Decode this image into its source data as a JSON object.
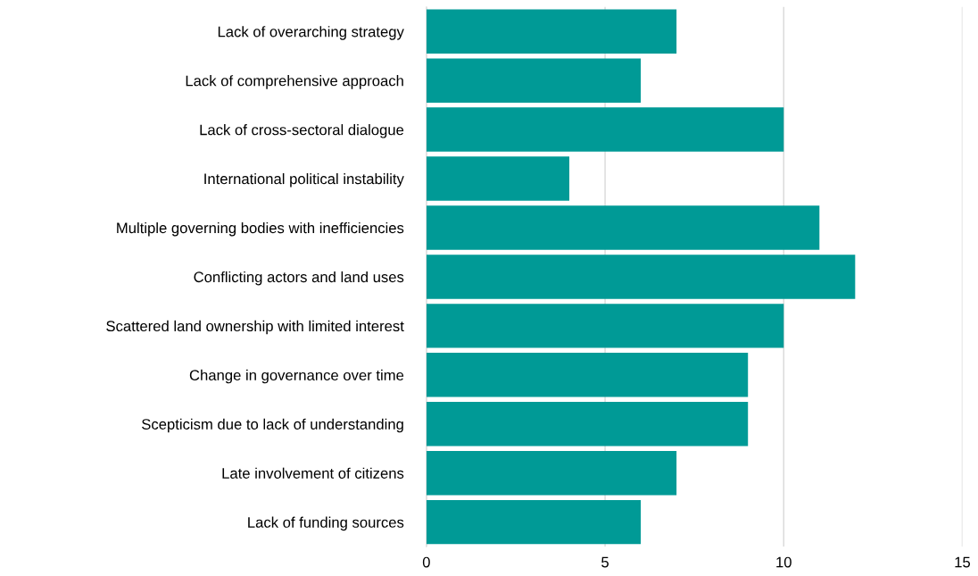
{
  "chart_data": {
    "type": "bar",
    "orientation": "horizontal",
    "categories": [
      "Lack of overarching strategy",
      "Lack of comprehensive approach",
      "Lack of cross-sectoral dialogue",
      "International political instability",
      "Multiple governing bodies with inefficiencies",
      "Conflicting actors and land uses",
      "Scattered land ownership with limited interest",
      "Change in governance over time",
      "Scepticism due to lack of understanding",
      "Late involvement of citizens",
      "Lack of funding sources"
    ],
    "values": [
      7,
      6,
      10,
      4,
      11,
      12,
      10,
      9,
      9,
      7,
      6
    ],
    "color": "#009a96",
    "xlim": [
      0,
      15
    ],
    "xticks": [
      0,
      5,
      10,
      15
    ],
    "grid": "x"
  }
}
